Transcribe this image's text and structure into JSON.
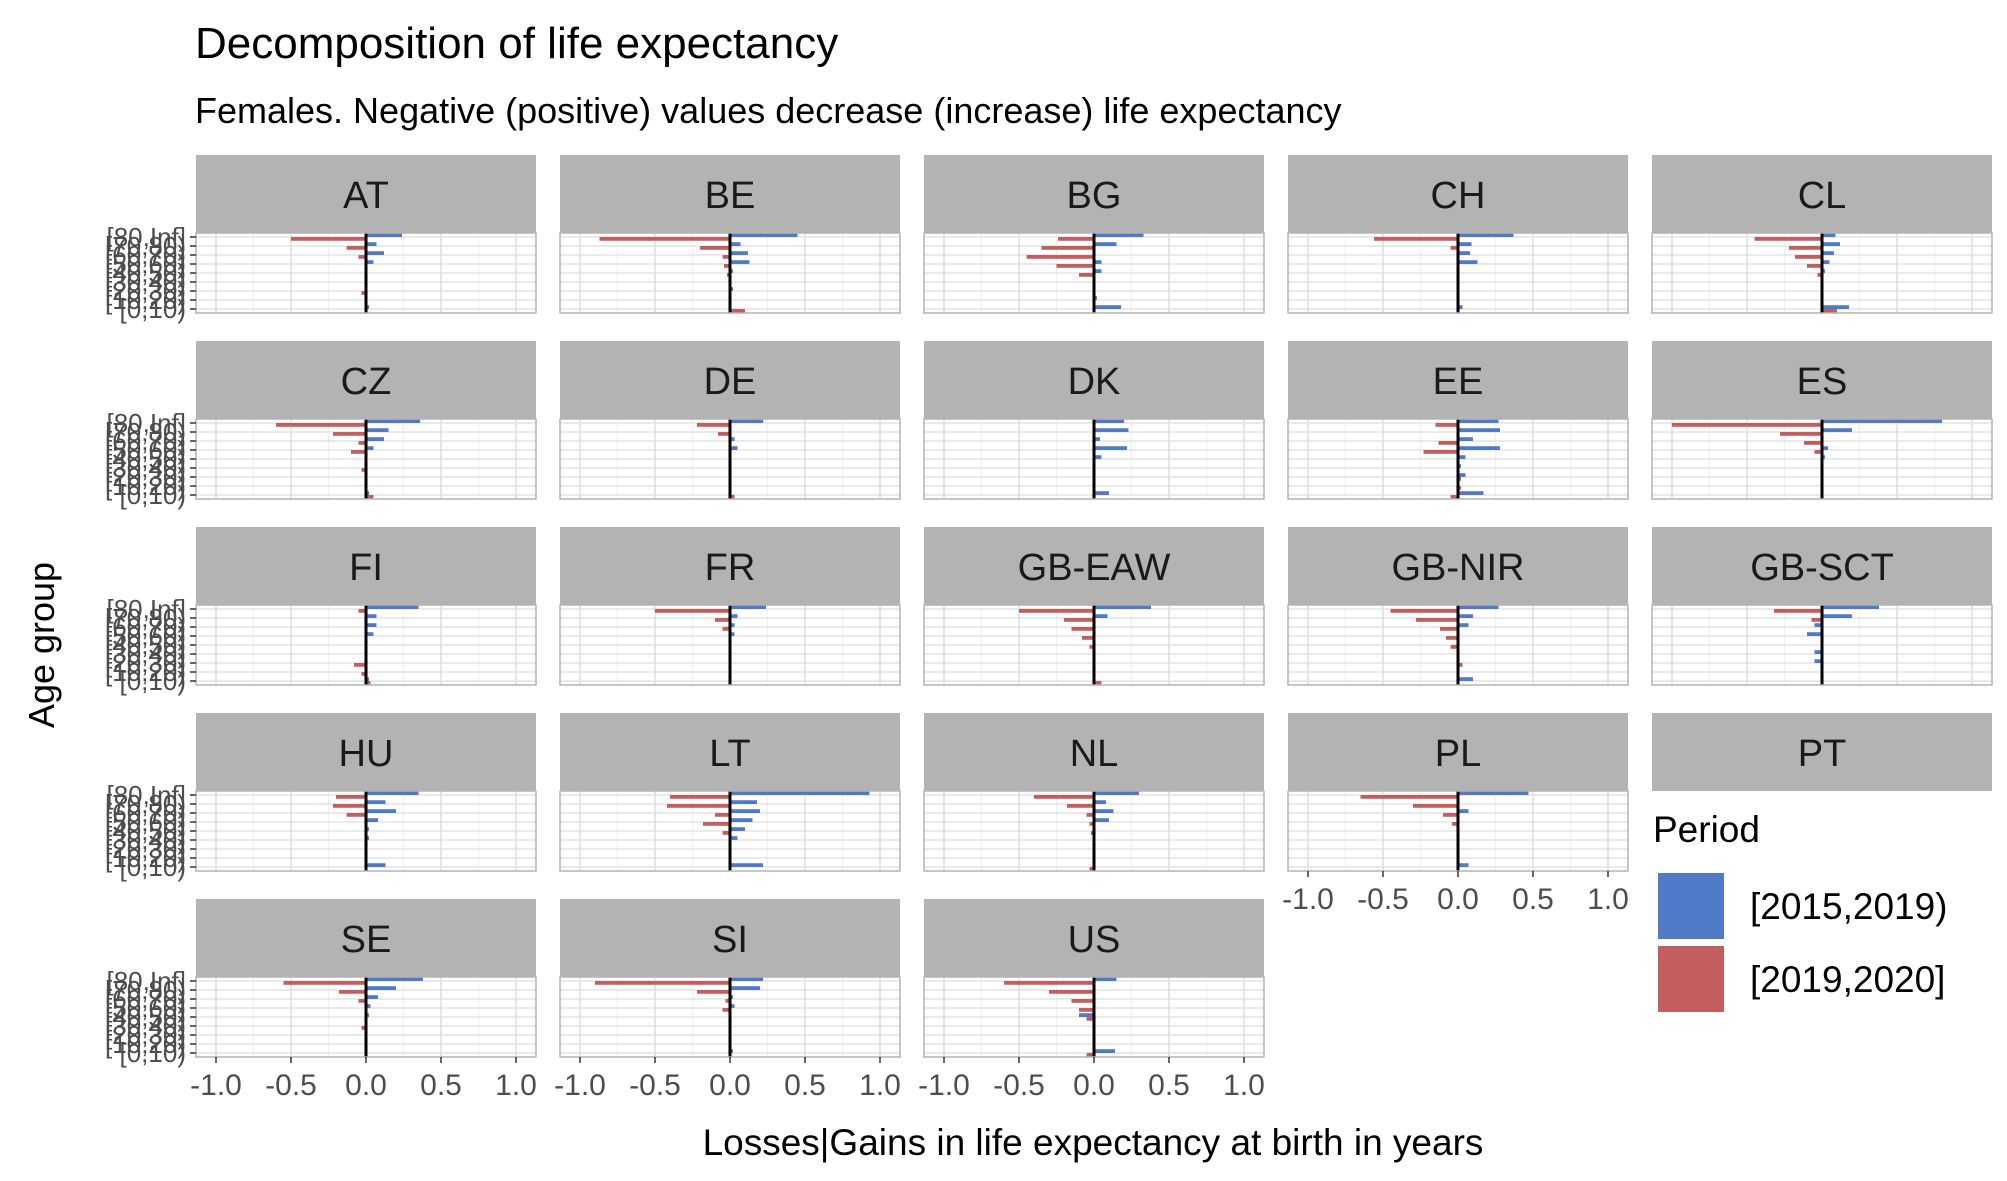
{
  "chart_data": {
    "type": "bar",
    "orientation": "horizontal",
    "title": "Decomposition of life expectancy",
    "subtitle": "Females. Negative (positive) values decrease (increase) life expectancy",
    "xlabel": "Losses|Gains in life expectancy at birth in years",
    "ylabel": "Age group",
    "xlim": [
      -1.0,
      1.0
    ],
    "x_ticks": [
      "-1.0",
      "-0.5",
      "0.0",
      "0.5",
      "1.0"
    ],
    "categories": [
      "[0,10)",
      "[10,20)",
      "[20,30)",
      "[30,40)",
      "[40,50)",
      "[50,60)",
      "[60,70)",
      "[70,80)",
      "[80,Inf]"
    ],
    "y_tick_labels": [
      "[0,10)",
      "[10,20)",
      "[20,30)",
      "[30,40)",
      "[40,50)",
      "[50,60)",
      "[60,70)",
      "[70,80)",
      "[80,Inf]"
    ],
    "grid": true,
    "legend": {
      "title": "Period",
      "position": "right",
      "entries": [
        {
          "label": "[2015,2019)",
          "color": "#5079c8"
        },
        {
          "label": "[2019,2020]",
          "color": "#c45d5d"
        }
      ]
    },
    "series_order": [
      "[2015,2019)",
      "[2019,2020]"
    ],
    "facets": [
      {
        "name": "AT",
        "series": [
          {
            "name": "[2015,2019)",
            "values": [
              0.02,
              0.0,
              0.01,
              0.0,
              0.01,
              0.05,
              0.12,
              0.07,
              0.24
            ]
          },
          {
            "name": "[2019,2020]",
            "values": [
              0.0,
              0.0,
              -0.03,
              0.0,
              0.0,
              0.0,
              -0.05,
              -0.13,
              -0.5
            ]
          }
        ]
      },
      {
        "name": "BE",
        "series": [
          {
            "name": "[2015,2019)",
            "values": [
              0.0,
              0.01,
              0.02,
              0.01,
              0.02,
              0.13,
              0.12,
              0.07,
              0.45
            ]
          },
          {
            "name": "[2019,2020]",
            "values": [
              0.1,
              0.0,
              0.0,
              0.0,
              -0.02,
              -0.04,
              -0.05,
              -0.2,
              -0.87
            ]
          }
        ]
      },
      {
        "name": "BG",
        "series": [
          {
            "name": "[2015,2019)",
            "values": [
              0.18,
              0.02,
              0.01,
              0.01,
              0.05,
              0.05,
              0.0,
              0.15,
              0.33
            ]
          },
          {
            "name": "[2019,2020]",
            "values": [
              0.0,
              0.0,
              0.0,
              -0.01,
              -0.1,
              -0.25,
              -0.45,
              -0.35,
              -0.24
            ]
          }
        ]
      },
      {
        "name": "CH",
        "series": [
          {
            "name": "[2015,2019)",
            "values": [
              0.03,
              0.0,
              0.01,
              0.01,
              0.01,
              0.13,
              0.08,
              0.09,
              0.37
            ]
          },
          {
            "name": "[2019,2020]",
            "values": [
              0.0,
              0.0,
              0.0,
              0.0,
              0.0,
              0.0,
              0.0,
              -0.05,
              -0.56
            ]
          }
        ]
      },
      {
        "name": "CL",
        "series": [
          {
            "name": "[2015,2019)",
            "values": [
              0.18,
              0.0,
              0.0,
              0.01,
              0.02,
              0.05,
              0.08,
              0.12,
              0.09
            ]
          },
          {
            "name": "[2019,2020]",
            "values": [
              0.1,
              0.0,
              0.0,
              0.0,
              -0.03,
              -0.1,
              -0.18,
              -0.22,
              -0.45
            ]
          }
        ]
      },
      {
        "name": "CZ",
        "series": [
          {
            "name": "[2015,2019)",
            "values": [
              0.02,
              0.0,
              0.0,
              0.0,
              0.01,
              0.05,
              0.12,
              0.15,
              0.36
            ]
          },
          {
            "name": "[2019,2020]",
            "values": [
              0.05,
              0.0,
              0.0,
              -0.03,
              0.0,
              -0.1,
              -0.05,
              -0.22,
              -0.6
            ]
          }
        ]
      },
      {
        "name": "DE",
        "series": [
          {
            "name": "[2015,2019)",
            "values": [
              0.0,
              0.0,
              0.0,
              0.0,
              0.01,
              0.05,
              0.03,
              0.0,
              0.22
            ]
          },
          {
            "name": "[2019,2020]",
            "values": [
              0.03,
              0.0,
              0.0,
              0.0,
              0.0,
              0.0,
              0.0,
              -0.08,
              -0.22
            ]
          }
        ]
      },
      {
        "name": "DK",
        "series": [
          {
            "name": "[2015,2019)",
            "values": [
              0.1,
              0.0,
              -0.01,
              0.0,
              0.05,
              0.22,
              0.04,
              0.23,
              0.2
            ]
          },
          {
            "name": "[2019,2020]",
            "values": [
              0.0,
              0.0,
              0.0,
              0.0,
              0.0,
              0.0,
              0.0,
              0.0,
              0.0
            ]
          }
        ]
      },
      {
        "name": "EE",
        "series": [
          {
            "name": "[2015,2019)",
            "values": [
              0.17,
              0.0,
              0.05,
              0.02,
              0.05,
              0.28,
              0.1,
              0.28,
              0.27
            ]
          },
          {
            "name": "[2019,2020]",
            "values": [
              -0.05,
              0.02,
              0.02,
              0.0,
              0.0,
              -0.23,
              -0.13,
              0.0,
              -0.15
            ]
          }
        ]
      },
      {
        "name": "ES",
        "series": [
          {
            "name": "[2015,2019)",
            "values": [
              0.0,
              0.0,
              0.0,
              0.0,
              0.02,
              0.04,
              0.0,
              0.2,
              0.8
            ]
          },
          {
            "name": "[2019,2020]",
            "values": [
              0.0,
              0.0,
              0.0,
              0.0,
              0.0,
              -0.05,
              -0.12,
              -0.28,
              -1.0
            ]
          }
        ]
      },
      {
        "name": "FI",
        "series": [
          {
            "name": "[2015,2019)",
            "values": [
              0.02,
              0.0,
              0.0,
              0.0,
              0.0,
              0.05,
              0.07,
              0.07,
              0.35
            ]
          },
          {
            "name": "[2019,2020]",
            "values": [
              0.03,
              -0.03,
              -0.08,
              0.0,
              0.0,
              0.0,
              0.0,
              0.0,
              -0.05
            ]
          }
        ]
      },
      {
        "name": "FR",
        "series": [
          {
            "name": "[2015,2019)",
            "values": [
              0.0,
              0.0,
              0.0,
              0.0,
              0.0,
              0.03,
              0.03,
              0.05,
              0.24
            ]
          },
          {
            "name": "[2019,2020]",
            "values": [
              0.0,
              0.0,
              0.0,
              0.0,
              0.0,
              0.0,
              -0.05,
              -0.1,
              -0.5
            ]
          }
        ]
      },
      {
        "name": "GB-EAW",
        "series": [
          {
            "name": "[2015,2019)",
            "values": [
              0.0,
              0.0,
              0.0,
              0.0,
              0.0,
              0.0,
              0.0,
              0.09,
              0.38
            ]
          },
          {
            "name": "[2019,2020]",
            "values": [
              0.05,
              0.0,
              0.0,
              0.0,
              -0.03,
              -0.08,
              -0.15,
              -0.2,
              -0.5
            ]
          }
        ]
      },
      {
        "name": "GB-NIR",
        "series": [
          {
            "name": "[2015,2019)",
            "values": [
              0.1,
              0.0,
              0.0,
              0.0,
              0.0,
              0.0,
              0.07,
              0.1,
              0.27
            ]
          },
          {
            "name": "[2019,2020]",
            "values": [
              0.0,
              0.0,
              0.03,
              0.0,
              -0.05,
              -0.08,
              -0.12,
              -0.28,
              -0.45
            ]
          }
        ]
      },
      {
        "name": "GB-SCT",
        "series": [
          {
            "name": "[2015,2019)",
            "values": [
              0.0,
              0.0,
              -0.05,
              -0.05,
              0.0,
              -0.1,
              -0.05,
              0.2,
              0.38
            ]
          },
          {
            "name": "[2019,2020]",
            "values": [
              0.0,
              0.0,
              0.0,
              0.0,
              0.0,
              0.0,
              0.0,
              -0.07,
              -0.32
            ]
          }
        ]
      },
      {
        "name": "HU",
        "series": [
          {
            "name": "[2015,2019)",
            "values": [
              0.13,
              0.0,
              0.0,
              0.02,
              0.02,
              0.08,
              0.2,
              0.13,
              0.35
            ]
          },
          {
            "name": "[2019,2020]",
            "values": [
              0.0,
              0.0,
              0.0,
              0.0,
              0.0,
              0.0,
              -0.13,
              -0.22,
              -0.2
            ]
          }
        ]
      },
      {
        "name": "LT",
        "series": [
          {
            "name": "[2015,2019)",
            "values": [
              0.22,
              0.0,
              0.0,
              0.05,
              0.1,
              0.15,
              0.2,
              0.18,
              0.93
            ]
          },
          {
            "name": "[2019,2020]",
            "values": [
              0.0,
              0.0,
              0.0,
              0.0,
              -0.05,
              -0.18,
              -0.1,
              -0.42,
              -0.4
            ]
          }
        ]
      },
      {
        "name": "NL",
        "series": [
          {
            "name": "[2015,2019)",
            "values": [
              0.0,
              0.0,
              0.0,
              0.0,
              0.0,
              0.1,
              0.13,
              0.08,
              0.3
            ]
          },
          {
            "name": "[2019,2020]",
            "values": [
              -0.03,
              0.0,
              0.0,
              0.0,
              -0.02,
              -0.03,
              -0.05,
              -0.18,
              -0.4
            ]
          }
        ]
      },
      {
        "name": "PL",
        "series": [
          {
            "name": "[2015,2019)",
            "values": [
              0.07,
              0.0,
              0.0,
              0.0,
              0.0,
              0.0,
              0.07,
              0.0,
              0.47
            ]
          },
          {
            "name": "[2019,2020]",
            "values": [
              0.0,
              0.0,
              0.0,
              0.0,
              0.0,
              -0.04,
              -0.1,
              -0.3,
              -0.65
            ]
          }
        ]
      },
      {
        "name": "PT",
        "series": [
          {
            "name": "[2015,2019)",
            "values": []
          },
          {
            "name": "[2019,2020]",
            "values": []
          }
        ]
      },
      {
        "name": "SE",
        "series": [
          {
            "name": "[2015,2019)",
            "values": [
              0.0,
              0.0,
              0.0,
              0.0,
              0.02,
              0.03,
              0.08,
              0.2,
              0.38
            ]
          },
          {
            "name": "[2019,2020]",
            "values": [
              0.0,
              0.0,
              0.0,
              -0.03,
              0.0,
              0.0,
              -0.05,
              -0.18,
              -0.55
            ]
          }
        ]
      },
      {
        "name": "SI",
        "series": [
          {
            "name": "[2015,2019)",
            "values": [
              0.02,
              0.0,
              0.0,
              0.0,
              0.0,
              0.03,
              0.02,
              0.2,
              0.22
            ]
          },
          {
            "name": "[2019,2020]",
            "values": [
              0.0,
              0.0,
              0.0,
              0.0,
              0.0,
              -0.05,
              -0.03,
              -0.22,
              -0.9
            ]
          }
        ]
      },
      {
        "name": "US",
        "series": [
          {
            "name": "[2015,2019)",
            "values": [
              0.14,
              0.0,
              0.0,
              0.0,
              -0.1,
              0.0,
              0.0,
              0.0,
              0.15
            ]
          },
          {
            "name": "[2019,2020]",
            "values": [
              -0.05,
              0.0,
              0.0,
              0.0,
              -0.05,
              -0.1,
              -0.15,
              -0.3,
              -0.6
            ]
          }
        ]
      }
    ]
  }
}
